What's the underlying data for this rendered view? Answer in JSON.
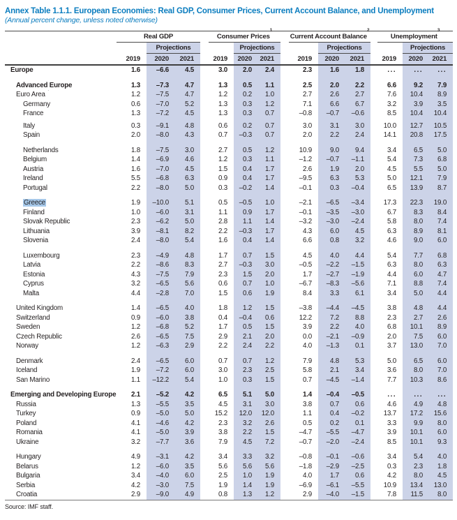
{
  "title": "Annex Table 1.1.1. European Economies: Real GDP, Consumer Prices, Current Account Balance, and Unemployment",
  "subtitle": "(Annual percent change, unless noted otherwise)",
  "source": "Source: IMF staff.",
  "colors": {
    "title_blue": "#0b7dbf",
    "projection_band": "#ccd3e8",
    "greece_highlight": "#a6c8e9",
    "text": "#231f20"
  },
  "table": {
    "projections_label": "Projections",
    "years": [
      "2019",
      "2020",
      "2021"
    ],
    "groups": [
      {
        "label": "Real GDP",
        "sup": ""
      },
      {
        "label": "Consumer Prices",
        "sup": "1"
      },
      {
        "label": "Current Account Balance",
        "sup": "2"
      },
      {
        "label": "Unemployment",
        "sup": "3"
      }
    ],
    "rows": [
      {
        "label": "Europe",
        "sup": "",
        "level": 0,
        "bold": true,
        "highlight": false,
        "gap": "none",
        "values": [
          "1.6",
          "–6.6",
          "4.5",
          "3.0",
          "2.0",
          "2.4",
          "2.3",
          "1.6",
          "1.8",
          "...",
          "...",
          "..."
        ]
      },
      {
        "label": "Advanced Europe",
        "sup": "",
        "level": 1,
        "bold": true,
        "highlight": false,
        "gap": "normal",
        "values": [
          "1.3",
          "–7.3",
          "4.7",
          "1.3",
          "0.5",
          "1.1",
          "2.5",
          "2.0",
          "2.2",
          "6.6",
          "9.2",
          "7.9"
        ]
      },
      {
        "label": "Euro Area",
        "sup": "4,5",
        "level": 1,
        "bold": false,
        "highlight": false,
        "gap": "none",
        "values": [
          "1.2",
          "–7.5",
          "4.7",
          "1.2",
          "0.2",
          "1.0",
          "2.7",
          "2.6",
          "2.7",
          "7.6",
          "10.4",
          "8.9"
        ]
      },
      {
        "label": "Germany",
        "sup": "",
        "level": 2,
        "bold": false,
        "highlight": false,
        "gap": "none",
        "values": [
          "0.6",
          "–7.0",
          "5.2",
          "1.3",
          "0.3",
          "1.2",
          "7.1",
          "6.6",
          "6.7",
          "3.2",
          "3.9",
          "3.5"
        ]
      },
      {
        "label": "France",
        "sup": "",
        "level": 2,
        "bold": false,
        "highlight": false,
        "gap": "none",
        "values": [
          "1.3",
          "–7.2",
          "4.5",
          "1.3",
          "0.3",
          "0.7",
          "–0.8",
          "–0.7",
          "–0.6",
          "8.5",
          "10.4",
          "10.4"
        ]
      },
      {
        "label": "Italy",
        "sup": "",
        "level": 2,
        "bold": false,
        "highlight": false,
        "gap": "small",
        "values": [
          "0.3",
          "–9.1",
          "4.8",
          "0.6",
          "0.2",
          "0.7",
          "3.0",
          "3.1",
          "3.0",
          "10.0",
          "12.7",
          "10.5"
        ]
      },
      {
        "label": "Spain",
        "sup": "",
        "level": 2,
        "bold": false,
        "highlight": false,
        "gap": "none",
        "values": [
          "2.0",
          "–8.0",
          "4.3",
          "0.7",
          "–0.3",
          "0.7",
          "2.0",
          "2.2",
          "2.4",
          "14.1",
          "20.8",
          "17.5"
        ]
      },
      {
        "label": "Netherlands",
        "sup": "",
        "level": 2,
        "bold": false,
        "highlight": false,
        "gap": "normal",
        "values": [
          "1.8",
          "–7.5",
          "3.0",
          "2.7",
          "0.5",
          "1.2",
          "10.9",
          "9.0",
          "9.4",
          "3.4",
          "6.5",
          "5.0"
        ]
      },
      {
        "label": "Belgium",
        "sup": "",
        "level": 2,
        "bold": false,
        "highlight": false,
        "gap": "none",
        "values": [
          "1.4",
          "–6.9",
          "4.6",
          "1.2",
          "0.3",
          "1.1",
          "–1.2",
          "–0.7",
          "–1.1",
          "5.4",
          "7.3",
          "6.8"
        ]
      },
      {
        "label": "Austria",
        "sup": "",
        "level": 2,
        "bold": false,
        "highlight": false,
        "gap": "none",
        "values": [
          "1.6",
          "–7.0",
          "4.5",
          "1.5",
          "0.4",
          "1.7",
          "2.6",
          "1.9",
          "2.0",
          "4.5",
          "5.5",
          "5.0"
        ]
      },
      {
        "label": "Ireland",
        "sup": "",
        "level": 2,
        "bold": false,
        "highlight": false,
        "gap": "none",
        "values": [
          "5.5",
          "–6.8",
          "6.3",
          "0.9",
          "0.4",
          "1.7",
          "–9.5",
          "6.3",
          "5.3",
          "5.0",
          "12.1",
          "7.9"
        ]
      },
      {
        "label": "Portugal",
        "sup": "",
        "level": 2,
        "bold": false,
        "highlight": false,
        "gap": "none",
        "values": [
          "2.2",
          "–8.0",
          "5.0",
          "0.3",
          "–0.2",
          "1.4",
          "–0.1",
          "0.3",
          "–0.4",
          "6.5",
          "13.9",
          "8.7"
        ]
      },
      {
        "label": "Greece",
        "sup": "",
        "level": 2,
        "bold": false,
        "highlight": true,
        "gap": "normal",
        "values": [
          "1.9",
          "–10.0",
          "5.1",
          "0.5",
          "–0.5",
          "1.0",
          "–2.1",
          "–6.5",
          "–3.4",
          "17.3",
          "22.3",
          "19.0"
        ]
      },
      {
        "label": "Finland",
        "sup": "",
        "level": 2,
        "bold": false,
        "highlight": false,
        "gap": "none",
        "values": [
          "1.0",
          "–6.0",
          "3.1",
          "1.1",
          "0.9",
          "1.7",
          "–0.1",
          "–3.5",
          "–3.0",
          "6.7",
          "8.3",
          "8.4"
        ]
      },
      {
        "label": "Slovak Republic",
        "sup": "",
        "level": 2,
        "bold": false,
        "highlight": false,
        "gap": "none",
        "values": [
          "2.3",
          "–6.2",
          "5.0",
          "2.8",
          "1.1",
          "1.4",
          "–3.2",
          "–3.0",
          "–2.4",
          "5.8",
          "8.0",
          "7.4"
        ]
      },
      {
        "label": "Lithuania",
        "sup": "",
        "level": 2,
        "bold": false,
        "highlight": false,
        "gap": "none",
        "values": [
          "3.9",
          "–8.1",
          "8.2",
          "2.2",
          "–0.3",
          "1.7",
          "4.3",
          "6.0",
          "4.5",
          "6.3",
          "8.9",
          "8.1"
        ]
      },
      {
        "label": "Slovenia",
        "sup": "",
        "level": 2,
        "bold": false,
        "highlight": false,
        "gap": "none",
        "values": [
          "2.4",
          "–8.0",
          "5.4",
          "1.6",
          "0.4",
          "1.4",
          "6.6",
          "0.8",
          "3.2",
          "4.6",
          "9.0",
          "6.0"
        ]
      },
      {
        "label": "Luxembourg",
        "sup": "",
        "level": 2,
        "bold": false,
        "highlight": false,
        "gap": "normal",
        "values": [
          "2.3",
          "–4.9",
          "4.8",
          "1.7",
          "0.7",
          "1.5",
          "4.5",
          "4.0",
          "4.4",
          "5.4",
          "7.7",
          "6.8"
        ]
      },
      {
        "label": "Latvia",
        "sup": "",
        "level": 2,
        "bold": false,
        "highlight": false,
        "gap": "none",
        "values": [
          "2.2",
          "–8.6",
          "8.3",
          "2.7",
          "–0.3",
          "3.0",
          "–0.5",
          "–2.2",
          "–1.5",
          "6.3",
          "8.0",
          "6.3"
        ]
      },
      {
        "label": "Estonia",
        "sup": "",
        "level": 2,
        "bold": false,
        "highlight": false,
        "gap": "none",
        "values": [
          "4.3",
          "–7.5",
          "7.9",
          "2.3",
          "1.5",
          "2.0",
          "1.7",
          "–2.7",
          "–1.9",
          "4.4",
          "6.0",
          "4.7"
        ]
      },
      {
        "label": "Cyprus",
        "sup": "",
        "level": 2,
        "bold": false,
        "highlight": false,
        "gap": "none",
        "values": [
          "3.2",
          "–6.5",
          "5.6",
          "0.6",
          "0.7",
          "1.0",
          "–6.7",
          "–8.3",
          "–5.6",
          "7.1",
          "8.8",
          "7.4"
        ]
      },
      {
        "label": "Malta",
        "sup": "",
        "level": 2,
        "bold": false,
        "highlight": false,
        "gap": "none",
        "values": [
          "4.4",
          "–2.8",
          "7.0",
          "1.5",
          "0.6",
          "1.9",
          "8.4",
          "3.3",
          "6.1",
          "3.4",
          "5.0",
          "4.4"
        ]
      },
      {
        "label": "United Kingdom",
        "sup": "",
        "level": 1,
        "bold": false,
        "highlight": false,
        "gap": "normal",
        "values": [
          "1.4",
          "–6.5",
          "4.0",
          "1.8",
          "1.2",
          "1.5",
          "–3.8",
          "–4.4",
          "–4.5",
          "3.8",
          "4.8",
          "4.4"
        ]
      },
      {
        "label": "Switzerland",
        "sup": "",
        "level": 1,
        "bold": false,
        "highlight": false,
        "gap": "none",
        "values": [
          "0.9",
          "–6.0",
          "3.8",
          "0.4",
          "–0.4",
          "0.6",
          "12.2",
          "7.2",
          "8.8",
          "2.3",
          "2.7",
          "2.6"
        ]
      },
      {
        "label": "Sweden",
        "sup": "",
        "level": 1,
        "bold": false,
        "highlight": false,
        "gap": "none",
        "values": [
          "1.2",
          "–6.8",
          "5.2",
          "1.7",
          "0.5",
          "1.5",
          "3.9",
          "2.2",
          "4.0",
          "6.8",
          "10.1",
          "8.9"
        ]
      },
      {
        "label": "Czech Republic",
        "sup": "",
        "level": 1,
        "bold": false,
        "highlight": false,
        "gap": "none",
        "values": [
          "2.6",
          "–6.5",
          "7.5",
          "2.9",
          "2.1",
          "2.0",
          "0.0",
          "–2.1",
          "–0.9",
          "2.0",
          "7.5",
          "6.0"
        ]
      },
      {
        "label": "Norway",
        "sup": "",
        "level": 1,
        "bold": false,
        "highlight": false,
        "gap": "none",
        "values": [
          "1.2",
          "–6.3",
          "2.9",
          "2.2",
          "2.4",
          "2.2",
          "4.0",
          "–1.3",
          "0.1",
          "3.7",
          "13.0",
          "7.0"
        ]
      },
      {
        "label": "Denmark",
        "sup": "",
        "level": 1,
        "bold": false,
        "highlight": false,
        "gap": "normal",
        "values": [
          "2.4",
          "–6.5",
          "6.0",
          "0.7",
          "0.7",
          "1.2",
          "7.9",
          "4.8",
          "5.3",
          "5.0",
          "6.5",
          "6.0"
        ]
      },
      {
        "label": "Iceland",
        "sup": "",
        "level": 1,
        "bold": false,
        "highlight": false,
        "gap": "none",
        "values": [
          "1.9",
          "–7.2",
          "6.0",
          "3.0",
          "2.3",
          "2.5",
          "5.8",
          "2.1",
          "3.4",
          "3.6",
          "8.0",
          "7.0"
        ]
      },
      {
        "label": "San Marino",
        "sup": "",
        "level": 1,
        "bold": false,
        "highlight": false,
        "gap": "none",
        "values": [
          "1.1",
          "–12.2",
          "5.4",
          "1.0",
          "0.3",
          "1.5",
          "0.7",
          "–4.5",
          "–1.4",
          "7.7",
          "10.3",
          "8.6"
        ]
      },
      {
        "label": "Emerging and Developing Europe",
        "sup": "6",
        "level": 0,
        "bold": true,
        "highlight": false,
        "gap": "normal",
        "values": [
          "2.1",
          "–5.2",
          "4.2",
          "6.5",
          "5.1",
          "5.0",
          "1.4",
          "–0.4",
          "–0.5",
          "...",
          "...",
          "..."
        ]
      },
      {
        "label": "Russia",
        "sup": "",
        "level": 1,
        "bold": false,
        "highlight": false,
        "gap": "none",
        "values": [
          "1.3",
          "–5.5",
          "3.5",
          "4.5",
          "3.1",
          "3.0",
          "3.8",
          "0.7",
          "0.6",
          "4.6",
          "4.9",
          "4.8"
        ]
      },
      {
        "label": "Turkey",
        "sup": "",
        "level": 1,
        "bold": false,
        "highlight": false,
        "gap": "none",
        "values": [
          "0.9",
          "–5.0",
          "5.0",
          "15.2",
          "12.0",
          "12.0",
          "1.1",
          "0.4",
          "–0.2",
          "13.7",
          "17.2",
          "15.6"
        ]
      },
      {
        "label": "Poland",
        "sup": "",
        "level": 1,
        "bold": false,
        "highlight": false,
        "gap": "none",
        "values": [
          "4.1",
          "–4.6",
          "4.2",
          "2.3",
          "3.2",
          "2.6",
          "0.5",
          "0.2",
          "0.1",
          "3.3",
          "9.9",
          "8.0"
        ]
      },
      {
        "label": "Romania",
        "sup": "",
        "level": 1,
        "bold": false,
        "highlight": false,
        "gap": "none",
        "values": [
          "4.1",
          "–5.0",
          "3.9",
          "3.8",
          "2.2",
          "1.5",
          "–4.7",
          "–5.5",
          "–4.7",
          "3.9",
          "10.1",
          "6.0"
        ]
      },
      {
        "label": "Ukraine",
        "sup": "7",
        "level": 1,
        "bold": false,
        "highlight": false,
        "gap": "none",
        "values": [
          "3.2",
          "–7.7",
          "3.6",
          "7.9",
          "4.5",
          "7.2",
          "–0.7",
          "–2.0",
          "–2.4",
          "8.5",
          "10.1",
          "9.3"
        ]
      },
      {
        "label": "Hungary",
        "sup": "",
        "level": 1,
        "bold": false,
        "highlight": false,
        "gap": "normal",
        "values": [
          "4.9",
          "–3.1",
          "4.2",
          "3.4",
          "3.3",
          "3.2",
          "–0.8",
          "–0.1",
          "–0.6",
          "3.4",
          "5.4",
          "4.0"
        ]
      },
      {
        "label": "Belarus",
        "sup": "7",
        "level": 1,
        "bold": false,
        "highlight": false,
        "gap": "none",
        "values": [
          "1.2",
          "–6.0",
          "3.5",
          "5.6",
          "5.6",
          "5.6",
          "–1.8",
          "–2.9",
          "–2.5",
          "0.3",
          "2.3",
          "1.8"
        ]
      },
      {
        "label": "Bulgaria",
        "sup": "5",
        "level": 1,
        "bold": false,
        "highlight": false,
        "gap": "none",
        "values": [
          "3.4",
          "–4.0",
          "6.0",
          "2.5",
          "1.0",
          "1.9",
          "4.0",
          "1.7",
          "0.6",
          "4.2",
          "8.0",
          "4.5"
        ]
      },
      {
        "label": "Serbia",
        "sup": "",
        "level": 1,
        "bold": false,
        "highlight": false,
        "gap": "none",
        "values": [
          "4.2",
          "–3.0",
          "7.5",
          "1.9",
          "1.4",
          "1.9",
          "–6.9",
          "–6.1",
          "–5.5",
          "10.9",
          "13.4",
          "13.0"
        ]
      },
      {
        "label": "Croatia",
        "sup": "",
        "level": 1,
        "bold": false,
        "highlight": false,
        "gap": "none",
        "values": [
          "2.9",
          "–9.0",
          "4.9",
          "0.8",
          "1.3",
          "1.2",
          "2.9",
          "–4.0",
          "–1.5",
          "7.8",
          "11.5",
          "8.0"
        ]
      }
    ]
  }
}
